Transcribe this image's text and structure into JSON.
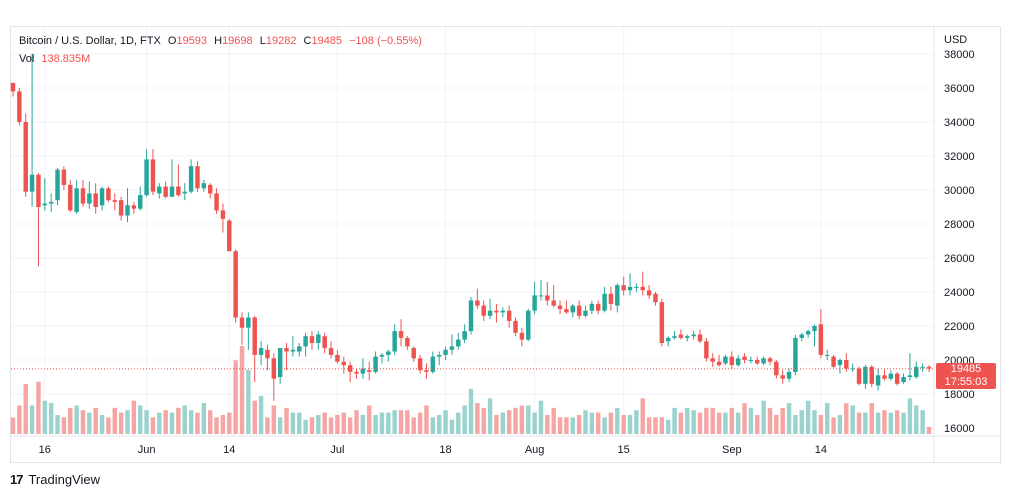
{
  "legend": {
    "symbol": "Bitcoin / U.S. Dollar, 1D, FTX",
    "o_label": "O",
    "o_value": "19593",
    "h_label": "H",
    "h_value": "19698",
    "l_label": "L",
    "l_value": "19282",
    "c_label": "C",
    "c_value": "19485",
    "change": "−108 (−0.55%)",
    "vol_label": "Vol",
    "vol_value": "138.835M"
  },
  "currency": "USD",
  "last_price": {
    "price": "19485",
    "countdown": "17:55:03"
  },
  "footer": {
    "brand": "TradingView"
  },
  "colors": {
    "up": "#26a69a",
    "down": "#ef5350",
    "up_vol": "#9ad3cd",
    "down_vol": "#f5a6a4",
    "grid": "#f0f3fa"
  },
  "chart_data": {
    "type": "candlestick",
    "title": "Bitcoin / U.S. Dollar, 1D, FTX",
    "ylabel": "USD",
    "ylim": [
      15500,
      38500
    ],
    "y_ticks": [
      16000,
      18000,
      20000,
      22000,
      24000,
      26000,
      28000,
      30000,
      32000,
      34000,
      36000,
      38000
    ],
    "x_ticks": [
      {
        "i": 5,
        "label": "16"
      },
      {
        "i": 21,
        "label": "Jun"
      },
      {
        "i": 34,
        "label": "14"
      },
      {
        "i": 51,
        "label": "Jul"
      },
      {
        "i": 68,
        "label": "18"
      },
      {
        "i": 82,
        "label": "Aug"
      },
      {
        "i": 96,
        "label": "15"
      },
      {
        "i": 113,
        "label": "Sep"
      },
      {
        "i": 127,
        "label": "14"
      }
    ],
    "candles": [
      [
        36300,
        36300,
        35500,
        35800
      ],
      [
        35800,
        36000,
        33800,
        34000
      ],
      [
        34000,
        34500,
        29600,
        29900
      ],
      [
        29900,
        38000,
        29000,
        30900
      ],
      [
        30900,
        31000,
        25500,
        29000
      ],
      [
        29100,
        30700,
        28800,
        29200
      ],
      [
        29200,
        29800,
        28700,
        29300
      ],
      [
        29400,
        31300,
        29100,
        31200
      ],
      [
        31200,
        31400,
        30000,
        30300
      ],
      [
        30300,
        30600,
        28700,
        28800
      ],
      [
        28700,
        30600,
        28600,
        30100
      ],
      [
        30100,
        30600,
        29000,
        29200
      ],
      [
        29200,
        30500,
        28900,
        29800
      ],
      [
        29800,
        30400,
        28600,
        29000
      ],
      [
        29100,
        30200,
        28800,
        30100
      ],
      [
        30100,
        30200,
        29300,
        29400
      ],
      [
        29400,
        29800,
        28800,
        29300
      ],
      [
        29400,
        29600,
        28200,
        28500
      ],
      [
        28500,
        30100,
        28100,
        29100
      ],
      [
        29100,
        29300,
        28600,
        28900
      ],
      [
        28900,
        30200,
        28800,
        29700
      ],
      [
        29700,
        32400,
        29600,
        31800
      ],
      [
        31800,
        32400,
        29700,
        29900
      ],
      [
        29800,
        30400,
        29500,
        30200
      ],
      [
        30200,
        30500,
        29500,
        29600
      ],
      [
        29600,
        31800,
        29600,
        30200
      ],
      [
        30200,
        31500,
        29600,
        29700
      ],
      [
        29800,
        30400,
        29400,
        29900
      ],
      [
        29900,
        31800,
        29800,
        31400
      ],
      [
        31400,
        31700,
        29900,
        30100
      ],
      [
        30100,
        30600,
        29900,
        30400
      ],
      [
        30300,
        30400,
        29500,
        29800
      ],
      [
        29800,
        30100,
        28600,
        28800
      ],
      [
        28800,
        29200,
        27500,
        28300
      ],
      [
        28200,
        28300,
        26400,
        26400
      ],
      [
        26400,
        26500,
        22200,
        22500
      ],
      [
        22500,
        22800,
        20900,
        21900
      ],
      [
        21900,
        22800,
        20600,
        22500
      ],
      [
        22500,
        22600,
        18700,
        20300
      ],
      [
        20300,
        21100,
        19700,
        20700
      ],
      [
        20600,
        20900,
        19400,
        20100
      ],
      [
        20100,
        20400,
        17600,
        18900
      ],
      [
        19000,
        20700,
        18600,
        20700
      ],
      [
        20700,
        21000,
        19400,
        20500
      ],
      [
        20500,
        21400,
        20200,
        20600
      ],
      [
        20500,
        21000,
        20200,
        20800
      ],
      [
        20800,
        21600,
        20200,
        21400
      ],
      [
        21400,
        21700,
        20600,
        21000
      ],
      [
        21000,
        21700,
        20600,
        21500
      ],
      [
        21400,
        21600,
        20400,
        20700
      ],
      [
        20700,
        21100,
        20100,
        20300
      ],
      [
        20300,
        20600,
        19800,
        19900
      ],
      [
        19900,
        20200,
        19200,
        19700
      ],
      [
        19700,
        19900,
        18700,
        19300
      ],
      [
        19300,
        19500,
        18900,
        19200
      ],
      [
        19200,
        20100,
        18900,
        19500
      ],
      [
        19400,
        19900,
        18800,
        19300
      ],
      [
        19300,
        20500,
        19200,
        20200
      ],
      [
        20200,
        20400,
        19800,
        20300
      ],
      [
        20300,
        20600,
        19900,
        20500
      ],
      [
        20500,
        22100,
        20300,
        21700
      ],
      [
        21700,
        22400,
        20800,
        21300
      ],
      [
        21300,
        21400,
        20600,
        20800
      ],
      [
        20700,
        20800,
        19900,
        20100
      ],
      [
        20100,
        20300,
        19200,
        19400
      ],
      [
        19400,
        19800,
        18900,
        19300
      ],
      [
        19300,
        20500,
        19200,
        20200
      ],
      [
        20200,
        20500,
        19700,
        20300
      ],
      [
        20300,
        20800,
        20000,
        20600
      ],
      [
        20600,
        21500,
        20300,
        20800
      ],
      [
        20800,
        21600,
        20600,
        21200
      ],
      [
        21200,
        22100,
        21000,
        21700
      ],
      [
        21700,
        23700,
        21500,
        23500
      ],
      [
        23500,
        24200,
        23000,
        23200
      ],
      [
        23200,
        23500,
        22300,
        22600
      ],
      [
        22600,
        23600,
        22400,
        22900
      ],
      [
        22900,
        23300,
        22200,
        22800
      ],
      [
        22800,
        23100,
        22500,
        22900
      ],
      [
        22900,
        23200,
        21900,
        22300
      ],
      [
        22300,
        22500,
        21400,
        21600
      ],
      [
        21600,
        21900,
        20800,
        21200
      ],
      [
        21200,
        23000,
        21100,
        22900
      ],
      [
        22900,
        24600,
        22700,
        23800
      ],
      [
        23800,
        24700,
        23500,
        23800
      ],
      [
        23800,
        24600,
        23200,
        23500
      ],
      [
        23500,
        24400,
        23100,
        23200
      ],
      [
        23200,
        23500,
        22700,
        23000
      ],
      [
        23000,
        23500,
        22700,
        22800
      ],
      [
        22800,
        23300,
        22500,
        23200
      ],
      [
        23200,
        23500,
        22400,
        22600
      ],
      [
        22600,
        23200,
        22500,
        22900
      ],
      [
        22900,
        23500,
        22700,
        23300
      ],
      [
        23300,
        23500,
        22700,
        22900
      ],
      [
        22900,
        24300,
        22800,
        23900
      ],
      [
        23900,
        24300,
        22900,
        23300
      ],
      [
        23200,
        24500,
        22800,
        24400
      ],
      [
        24400,
        24900,
        23800,
        24100
      ],
      [
        24100,
        25100,
        23800,
        24300
      ],
      [
        24300,
        24500,
        24000,
        24300
      ],
      [
        24300,
        25200,
        23800,
        24100
      ],
      [
        24100,
        24400,
        23600,
        23800
      ],
      [
        23900,
        24000,
        23200,
        23400
      ],
      [
        23400,
        23600,
        20800,
        21000
      ],
      [
        21100,
        21400,
        20800,
        21300
      ],
      [
        21300,
        21700,
        21200,
        21400
      ],
      [
        21500,
        21800,
        21200,
        21300
      ],
      [
        21300,
        21500,
        21100,
        21400
      ],
      [
        21400,
        21700,
        21200,
        21500
      ],
      [
        21500,
        21800,
        21000,
        21100
      ],
      [
        21100,
        21300,
        19900,
        20100
      ],
      [
        20100,
        20400,
        19600,
        19900
      ],
      [
        19900,
        20300,
        19600,
        19700
      ],
      [
        19800,
        20300,
        19700,
        20200
      ],
      [
        20200,
        20500,
        19500,
        19700
      ],
      [
        19700,
        20300,
        19600,
        20100
      ],
      [
        20200,
        20400,
        19800,
        20000
      ],
      [
        20000,
        20200,
        19800,
        20000
      ],
      [
        20000,
        20200,
        19700,
        19800
      ],
      [
        19800,
        20200,
        19700,
        20100
      ],
      [
        20100,
        20200,
        19700,
        19900
      ],
      [
        19900,
        20000,
        18900,
        19100
      ],
      [
        19100,
        19400,
        18600,
        18900
      ],
      [
        18900,
        19500,
        18700,
        19300
      ],
      [
        19300,
        21500,
        19100,
        21300
      ],
      [
        21300,
        21600,
        21100,
        21500
      ],
      [
        21500,
        21800,
        21300,
        21700
      ],
      [
        21700,
        22100,
        20800,
        22000
      ],
      [
        22100,
        23000,
        20100,
        20300
      ],
      [
        20300,
        20600,
        20000,
        20300
      ],
      [
        20200,
        20300,
        19500,
        19600
      ],
      [
        19700,
        20100,
        19200,
        20000
      ],
      [
        20000,
        20400,
        19300,
        19500
      ],
      [
        19500,
        19800,
        19300,
        19500
      ],
      [
        19500,
        19600,
        18500,
        18600
      ],
      [
        18600,
        19700,
        18300,
        19600
      ],
      [
        19600,
        19700,
        18400,
        18600
      ],
      [
        18500,
        19500,
        18200,
        19100
      ],
      [
        19100,
        19500,
        18800,
        18900
      ],
      [
        18900,
        19400,
        18800,
        19200
      ],
      [
        19200,
        19300,
        18500,
        18600
      ],
      [
        18700,
        19200,
        18600,
        19000
      ],
      [
        19000,
        20400,
        18800,
        19100
      ],
      [
        19000,
        19900,
        18900,
        19600
      ],
      [
        19600,
        19800,
        19300,
        19600
      ],
      [
        19600,
        19700,
        19300,
        19500
      ]
    ],
    "volume": [
      7,
      12,
      21,
      12,
      22,
      14,
      13,
      8,
      7,
      11,
      12,
      10,
      9,
      11,
      8,
      7,
      11,
      9,
      10,
      14,
      12,
      10,
      7,
      9,
      10,
      9,
      11,
      12,
      10,
      9,
      13,
      10,
      7,
      8,
      9,
      31,
      37,
      27,
      14,
      16,
      7,
      12,
      7,
      11,
      9,
      9,
      6,
      7,
      8,
      9,
      7,
      8,
      9,
      7,
      10,
      8,
      12,
      8,
      9,
      9,
      10,
      10,
      10,
      7,
      9,
      12,
      7,
      8,
      10,
      6,
      9,
      12,
      19,
      13,
      11,
      15,
      8,
      9,
      10,
      11,
      12,
      12,
      9,
      14,
      8,
      11,
      7,
      7,
      7,
      8,
      10,
      9,
      9,
      7,
      9,
      11,
      8,
      8,
      10,
      15,
      7,
      7,
      7,
      6,
      11,
      9,
      11,
      10,
      9,
      11,
      11,
      9,
      9,
      11,
      9,
      13,
      11,
      8,
      14,
      11,
      8,
      11,
      13,
      8,
      10,
      14,
      10,
      8,
      13,
      7,
      8,
      13,
      12,
      9,
      9,
      13,
      9,
      10,
      9,
      10,
      9,
      15,
      12,
      10,
      3
    ]
  }
}
